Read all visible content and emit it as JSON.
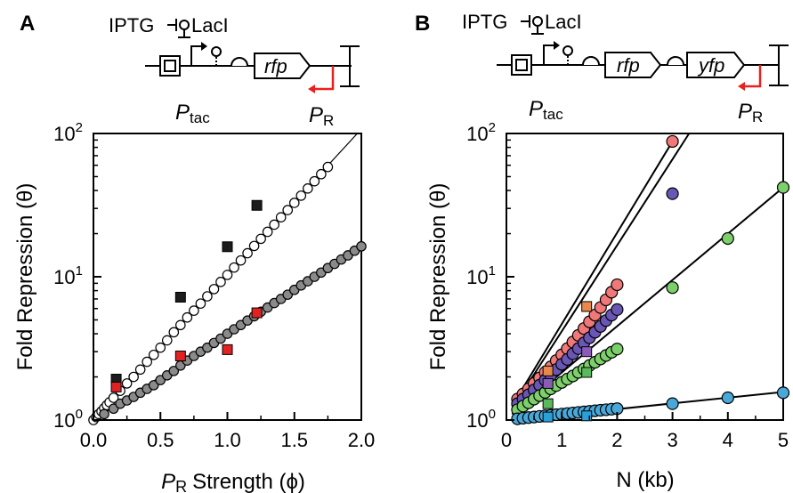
{
  "panels": {
    "A": {
      "letter": "A",
      "construct": {
        "inducer": "IPTG",
        "repressor": "LacI",
        "genes": [
          "rfp"
        ],
        "promoter_left_main": "P",
        "promoter_left_sub": "tac",
        "promoter_right_main": "P",
        "promoter_right_sub": "R",
        "antisense_color": "#e8221f"
      }
    },
    "B": {
      "letter": "B",
      "construct": {
        "inducer": "IPTG",
        "repressor": "LacI",
        "genes": [
          "rfp",
          "yfp"
        ],
        "promoter_left_main": "P",
        "promoter_left_sub": "tac",
        "promoter_right_main": "P",
        "promoter_right_sub": "R",
        "antisense_color": "#e8221f"
      }
    }
  },
  "chart_data": [
    {
      "type": "scatter",
      "panel": "A",
      "xlabel_main": "P",
      "xlabel_sub": "R",
      "xlabel_rest": "Strength (ϕ)",
      "ylabel": "Fold Repression (θ)",
      "xlim": [
        0,
        2.0
      ],
      "ylim": [
        1,
        100
      ],
      "yscale": "log",
      "xticks": [
        "0.0",
        "0.5",
        "1.0",
        "1.5",
        "2.0"
      ],
      "yticks": [
        {
          "base": "10",
          "exp": "0",
          "value": 1
        },
        {
          "base": "10",
          "exp": "1",
          "value": 10
        },
        {
          "base": "10",
          "exp": "2",
          "value": 100
        }
      ],
      "series": [
        {
          "style": "open-circle",
          "fill": "#ffffff",
          "stroke": "#000000",
          "points": [
            [
              0.0,
              1.0
            ],
            [
              0.02,
              1.05
            ],
            [
              0.04,
              1.1
            ],
            [
              0.06,
              1.15
            ],
            [
              0.08,
              1.21
            ],
            [
              0.1,
              1.27
            ],
            [
              0.12,
              1.33
            ],
            [
              0.15,
              1.43
            ],
            [
              0.2,
              1.6
            ],
            [
              0.25,
              1.8
            ],
            [
              0.3,
              2.0
            ],
            [
              0.35,
              2.25
            ],
            [
              0.4,
              2.55
            ],
            [
              0.45,
              2.85
            ],
            [
              0.5,
              3.2
            ],
            [
              0.55,
              3.6
            ],
            [
              0.6,
              4.1
            ],
            [
              0.65,
              4.6
            ],
            [
              0.7,
              5.2
            ],
            [
              0.75,
              5.8
            ],
            [
              0.8,
              6.5
            ],
            [
              0.85,
              7.3
            ],
            [
              0.9,
              8.2
            ],
            [
              0.95,
              9.2
            ],
            [
              1.0,
              10.3
            ],
            [
              1.05,
              11.6
            ],
            [
              1.1,
              13.0
            ],
            [
              1.15,
              14.6
            ],
            [
              1.2,
              16.4
            ],
            [
              1.25,
              18.4
            ],
            [
              1.3,
              20.6
            ],
            [
              1.35,
              23.1
            ],
            [
              1.4,
              26.0
            ],
            [
              1.45,
              29.2
            ],
            [
              1.5,
              32.8
            ],
            [
              1.55,
              36.8
            ],
            [
              1.6,
              41.3
            ],
            [
              1.65,
              46.4
            ],
            [
              1.7,
              52.0
            ],
            [
              1.75,
              58.4
            ]
          ],
          "line": [
            [
              0.0,
              1.0
            ],
            [
              1.97,
              100
            ]
          ]
        },
        {
          "style": "filled-circle",
          "fill": "#8a8a8a",
          "stroke": "#000000",
          "points": [
            [
              0.08,
              1.1
            ],
            [
              0.15,
              1.2
            ],
            [
              0.2,
              1.3
            ],
            [
              0.25,
              1.37
            ],
            [
              0.3,
              1.45
            ],
            [
              0.35,
              1.55
            ],
            [
              0.4,
              1.65
            ],
            [
              0.45,
              1.75
            ],
            [
              0.5,
              1.9
            ],
            [
              0.55,
              2.05
            ],
            [
              0.6,
              2.2
            ],
            [
              0.65,
              2.4
            ],
            [
              0.7,
              2.6
            ],
            [
              0.75,
              2.8
            ],
            [
              0.8,
              3.0
            ],
            [
              0.85,
              3.2
            ],
            [
              0.9,
              3.45
            ],
            [
              0.95,
              3.7
            ],
            [
              1.0,
              4.0
            ],
            [
              1.05,
              4.3
            ],
            [
              1.1,
              4.6
            ],
            [
              1.15,
              4.95
            ],
            [
              1.2,
              5.3
            ],
            [
              1.25,
              5.7
            ],
            [
              1.3,
              6.1
            ],
            [
              1.35,
              6.55
            ],
            [
              1.4,
              7.0
            ],
            [
              1.45,
              7.5
            ],
            [
              1.5,
              8.1
            ],
            [
              1.55,
              8.7
            ],
            [
              1.6,
              9.3
            ],
            [
              1.65,
              10.0
            ],
            [
              1.7,
              10.7
            ],
            [
              1.75,
              11.5
            ],
            [
              1.8,
              12.3
            ],
            [
              1.85,
              13.2
            ],
            [
              1.9,
              14.1
            ],
            [
              1.95,
              15.2
            ],
            [
              2.0,
              16.3
            ]
          ],
          "line": [
            [
              0.0,
              1.0
            ],
            [
              2.0,
              16.3
            ]
          ]
        },
        {
          "style": "filled-square",
          "fill": "#1c1c1c",
          "stroke": "#000000",
          "points": [
            [
              0.17,
              1.93
            ],
            [
              0.65,
              7.2
            ],
            [
              1.0,
              16.2
            ],
            [
              1.22,
              31.5
            ]
          ]
        },
        {
          "style": "filled-square",
          "fill": "#e02222",
          "stroke": "#000000",
          "points": [
            [
              0.17,
              1.7
            ],
            [
              0.65,
              2.8
            ],
            [
              1.0,
              3.1
            ],
            [
              1.22,
              5.6
            ]
          ]
        }
      ]
    },
    {
      "type": "scatter",
      "panel": "B",
      "xlabel": "N (kb)",
      "ylabel": "Fold Repression (θ)",
      "xlim": [
        0,
        5
      ],
      "ylim": [
        1,
        100
      ],
      "yscale": "log",
      "xticks": [
        "0",
        "1",
        "2",
        "3",
        "4",
        "5"
      ],
      "yticks": [
        {
          "base": "10",
          "exp": "0",
          "value": 1
        },
        {
          "base": "10",
          "exp": "1",
          "value": 10
        },
        {
          "base": "10",
          "exp": "2",
          "value": 100
        }
      ],
      "series": [
        {
          "style": "filled-circle",
          "fill": "#f07878",
          "stroke": "#000000",
          "points": [
            [
              0.2,
              1.4
            ],
            [
              0.3,
              1.52
            ],
            [
              0.4,
              1.65
            ],
            [
              0.5,
              1.8
            ],
            [
              0.6,
              1.97
            ],
            [
              0.7,
              2.15
            ],
            [
              0.8,
              2.35
            ],
            [
              0.9,
              2.6
            ],
            [
              1.0,
              2.85
            ],
            [
              1.1,
              3.15
            ],
            [
              1.2,
              3.5
            ],
            [
              1.3,
              3.9
            ],
            [
              1.4,
              4.35
            ],
            [
              1.5,
              4.85
            ],
            [
              1.6,
              5.4
            ],
            [
              1.7,
              6.1
            ],
            [
              1.8,
              6.9
            ],
            [
              1.9,
              7.8
            ],
            [
              2.0,
              8.8
            ],
            [
              3.0,
              88
            ]
          ],
          "line": [
            [
              0.1,
              1.25
            ],
            [
              3.0,
              88
            ]
          ]
        },
        {
          "style": "filled-circle",
          "fill": "#6a56b4",
          "stroke": "#000000",
          "points": [
            [
              0.2,
              1.3
            ],
            [
              0.3,
              1.4
            ],
            [
              0.4,
              1.5
            ],
            [
              0.5,
              1.62
            ],
            [
              0.6,
              1.75
            ],
            [
              0.7,
              1.9
            ],
            [
              0.8,
              2.05
            ],
            [
              0.9,
              2.25
            ],
            [
              1.0,
              2.45
            ],
            [
              1.1,
              2.65
            ],
            [
              1.2,
              2.9
            ],
            [
              1.3,
              3.15
            ],
            [
              1.4,
              3.45
            ],
            [
              1.5,
              3.75
            ],
            [
              1.6,
              4.1
            ],
            [
              1.7,
              4.5
            ],
            [
              1.8,
              4.95
            ],
            [
              1.9,
              5.4
            ],
            [
              2.0,
              5.9
            ],
            [
              3.0,
              38
            ]
          ],
          "line": [
            [
              0.1,
              1.2
            ],
            [
              3.3,
              100
            ]
          ]
        },
        {
          "style": "filled-circle",
          "fill": "#7ccf6a",
          "stroke": "#000000",
          "points": [
            [
              0.2,
              1.18
            ],
            [
              0.3,
              1.25
            ],
            [
              0.4,
              1.32
            ],
            [
              0.5,
              1.4
            ],
            [
              0.6,
              1.48
            ],
            [
              0.7,
              1.56
            ],
            [
              0.8,
              1.65
            ],
            [
              0.9,
              1.74
            ],
            [
              1.0,
              1.83
            ],
            [
              1.1,
              1.93
            ],
            [
              1.2,
              2.03
            ],
            [
              1.3,
              2.15
            ],
            [
              1.4,
              2.27
            ],
            [
              1.5,
              2.4
            ],
            [
              1.6,
              2.53
            ],
            [
              1.7,
              2.67
            ],
            [
              1.8,
              2.82
            ],
            [
              1.9,
              2.97
            ],
            [
              2.0,
              3.13
            ],
            [
              3.0,
              8.4
            ],
            [
              4.0,
              18.5
            ],
            [
              5.0,
              42
            ]
          ],
          "line": [
            [
              0.1,
              1.1
            ],
            [
              5.0,
              42
            ]
          ]
        },
        {
          "style": "filled-circle",
          "fill": "#4aa8d8",
          "stroke": "#000000",
          "points": [
            [
              0.2,
              1.02
            ],
            [
              0.3,
              1.03
            ],
            [
              0.4,
              1.04
            ],
            [
              0.5,
              1.05
            ],
            [
              0.6,
              1.06
            ],
            [
              0.7,
              1.07
            ],
            [
              0.8,
              1.08
            ],
            [
              0.9,
              1.09
            ],
            [
              1.0,
              1.1
            ],
            [
              1.1,
              1.11
            ],
            [
              1.2,
              1.12
            ],
            [
              1.3,
              1.13
            ],
            [
              1.4,
              1.14
            ],
            [
              1.5,
              1.15
            ],
            [
              1.6,
              1.16
            ],
            [
              1.7,
              1.17
            ],
            [
              1.8,
              1.18
            ],
            [
              1.9,
              1.19
            ],
            [
              2.0,
              1.2
            ],
            [
              3.0,
              1.3
            ],
            [
              4.0,
              1.43
            ],
            [
              5.0,
              1.55
            ]
          ],
          "line": [
            [
              0.1,
              1.0
            ],
            [
              5.0,
              1.57
            ]
          ]
        },
        {
          "style": "filled-square",
          "fill": "#e8884a",
          "stroke": "#000000",
          "points": [
            [
              0.75,
              2.2
            ],
            [
              1.45,
              6.2
            ]
          ]
        },
        {
          "style": "filled-square",
          "fill": "#8a5cb8",
          "stroke": "#000000",
          "points": [
            [
              0.75,
              1.8
            ],
            [
              1.45,
              3.0
            ]
          ]
        },
        {
          "style": "filled-square",
          "fill": "#5cb85c",
          "stroke": "#000000",
          "points": [
            [
              0.75,
              1.3
            ],
            [
              1.45,
              2.15
            ]
          ]
        },
        {
          "style": "filled-square",
          "fill": "#2aa0d8",
          "stroke": "#000000",
          "points": [
            [
              0.75,
              1.05
            ],
            [
              1.45,
              1.07
            ]
          ]
        }
      ]
    }
  ]
}
